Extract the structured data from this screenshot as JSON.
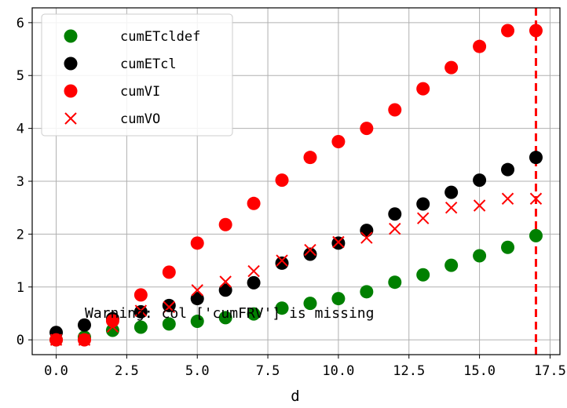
{
  "chart_data": {
    "type": "scatter",
    "title": "",
    "xlabel": "d",
    "ylabel": "",
    "xlim": [
      -0.85,
      17.85
    ],
    "ylim": [
      -0.28,
      6.28
    ],
    "xticks": [
      0,
      2.5,
      5,
      7.5,
      10,
      12.5,
      15,
      17.5
    ],
    "xtick_labels": [
      "0.0",
      "2.5",
      "5.0",
      "7.5",
      "10.0",
      "12.5",
      "15.0",
      "17.5"
    ],
    "yticks": [
      0,
      1,
      2,
      3,
      4,
      5,
      6
    ],
    "ytick_labels": [
      "0",
      "1",
      "2",
      "3",
      "4",
      "5",
      "6"
    ],
    "grid": true,
    "legend_position": "upper-left",
    "series": [
      {
        "name": "cumETcldef",
        "marker": "circle",
        "color": "#008000",
        "x": [
          0,
          1,
          2,
          3,
          4,
          5,
          6,
          7,
          8,
          9,
          10,
          11,
          12,
          13,
          14,
          15,
          16,
          17
        ],
        "y": [
          0.0,
          0.05,
          0.18,
          0.24,
          0.3,
          0.35,
          0.42,
          0.49,
          0.6,
          0.69,
          0.78,
          0.91,
          1.09,
          1.23,
          1.41,
          1.59,
          1.75,
          1.97
        ]
      },
      {
        "name": "cumETcl",
        "marker": "circle",
        "color": "#000000",
        "x": [
          0,
          1,
          2,
          3,
          4,
          5,
          6,
          7,
          8,
          9,
          10,
          11,
          12,
          13,
          14,
          15,
          16,
          17
        ],
        "y": [
          0.14,
          0.28,
          0.4,
          0.53,
          0.65,
          0.78,
          0.94,
          1.08,
          1.45,
          1.62,
          1.83,
          2.07,
          2.38,
          2.57,
          2.79,
          3.02,
          3.22,
          3.45
        ]
      },
      {
        "name": "cumVI",
        "marker": "circle",
        "color": "#ff0000",
        "x": [
          0,
          1,
          2,
          3,
          4,
          5,
          6,
          7,
          8,
          9,
          10,
          11,
          12,
          13,
          14,
          15,
          16,
          17
        ],
        "y": [
          0.0,
          0.0,
          0.36,
          0.85,
          1.28,
          1.83,
          2.18,
          2.58,
          3.02,
          3.45,
          3.75,
          4.0,
          4.35,
          4.75,
          5.15,
          5.55,
          5.85,
          5.85
        ]
      },
      {
        "name": "cumVO",
        "marker": "x",
        "color": "#ff0000",
        "x": [
          0,
          1,
          2,
          3,
          4,
          5,
          6,
          7,
          8,
          9,
          10,
          11,
          12,
          13,
          14,
          15,
          16,
          17
        ],
        "y": [
          0.0,
          0.0,
          0.25,
          0.55,
          0.62,
          0.94,
          1.1,
          1.3,
          1.5,
          1.7,
          1.85,
          1.93,
          2.1,
          2.3,
          2.5,
          2.54,
          2.67,
          2.67
        ]
      }
    ],
    "vline": {
      "x": 17,
      "color": "#ff0000",
      "style": "dashed"
    },
    "annotation": "Warning: col ['cumFRV'] is missing"
  }
}
